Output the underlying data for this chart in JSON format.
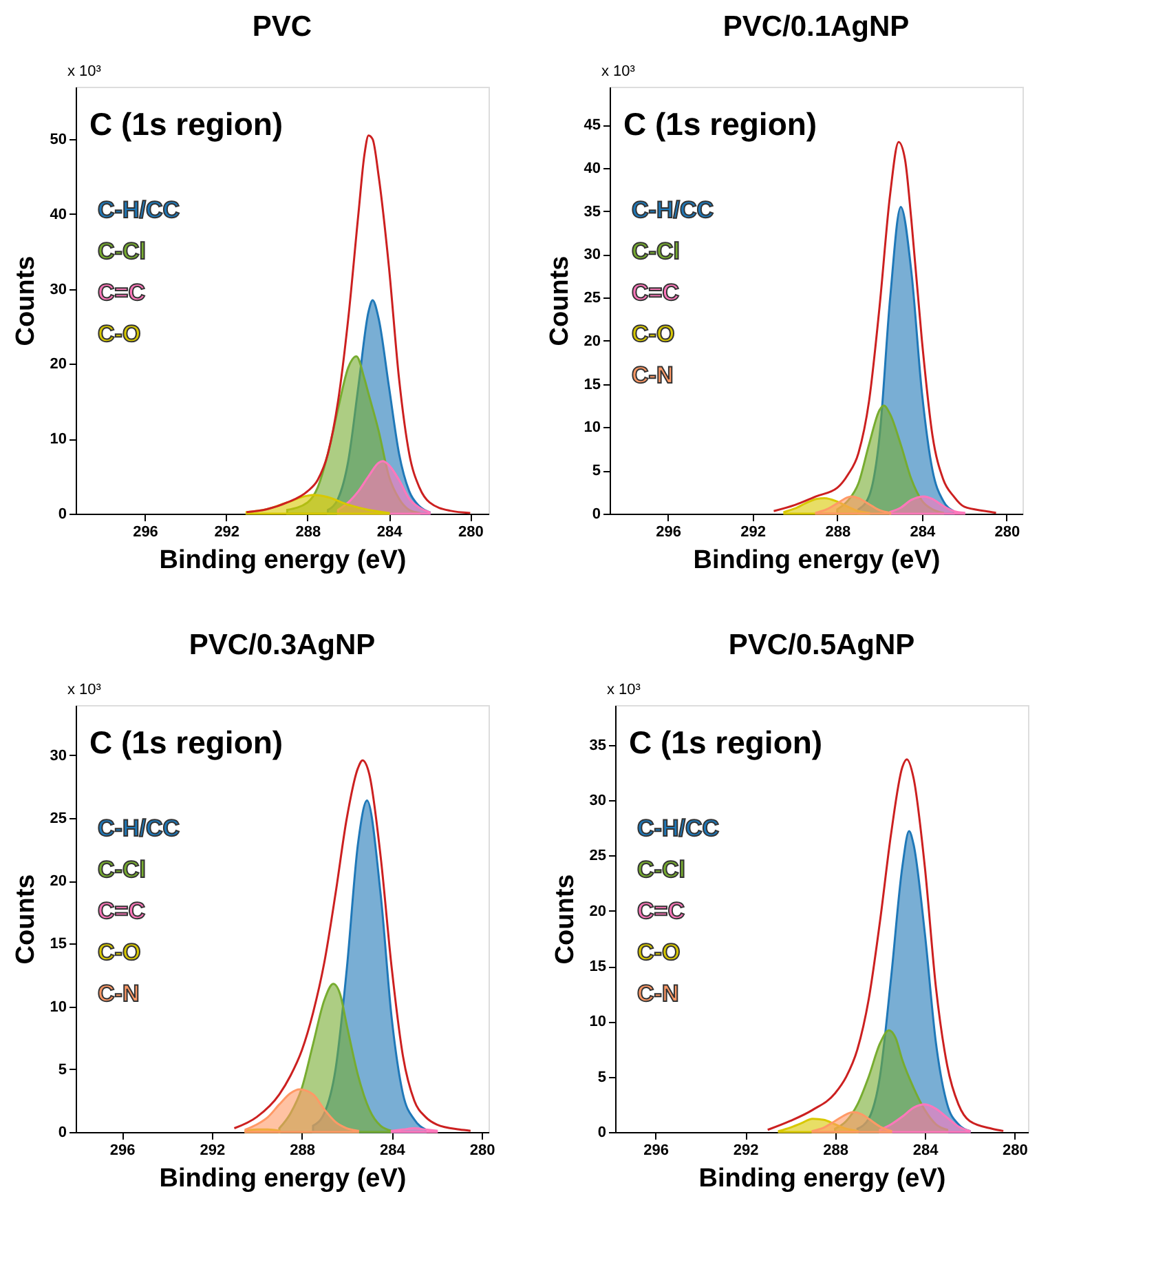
{
  "chart_data": [
    {
      "type": "area",
      "title": "PVC",
      "xlabel": "Binding energy (eV)",
      "ylabel": "Counts",
      "annotations": [
        "C (1s region)",
        "x 10³"
      ],
      "xlim": [
        299.4,
        279.1
      ],
      "xticks": [
        296,
        292,
        288,
        284,
        280
      ],
      "ylim": [
        0,
        57
      ],
      "yticks": [
        0,
        10,
        20,
        30,
        40,
        50
      ],
      "legend": "top left",
      "series": [
        {
          "name": "C-H/CC",
          "color": "#1f78b8",
          "x": [
            287,
            286.5,
            286,
            285.5,
            285,
            284.8,
            284.5,
            284,
            283.5,
            283,
            282.5,
            282
          ],
          "values": [
            0.5,
            2,
            7,
            17,
            27,
            28.5,
            26,
            17,
            8,
            3,
            1,
            0.2
          ]
        },
        {
          "name": "C-Cl",
          "color": "#77ac30",
          "x": [
            289,
            288,
            287.5,
            287,
            286.5,
            286,
            285.6,
            285.2,
            285,
            284.5,
            284,
            283.5,
            283,
            282.5
          ],
          "values": [
            0.5,
            1.5,
            3.5,
            8,
            14,
            19.5,
            21,
            18,
            16,
            11,
            5,
            2,
            0.5,
            0.1
          ]
        },
        {
          "name": "C=C",
          "color": "#ff77bb",
          "x": [
            286.5,
            286,
            285.5,
            285,
            284.5,
            284.3,
            284,
            283.5,
            283,
            282.5,
            282
          ],
          "values": [
            0.5,
            1.5,
            3,
            5,
            6.8,
            7,
            6.5,
            4.5,
            2,
            0.8,
            0.2
          ]
        },
        {
          "name": "C-O",
          "color": "#d8c800",
          "x": [
            291,
            290,
            289,
            288,
            287.7,
            287,
            286,
            285,
            284
          ],
          "values": [
            0.2,
            0.6,
            1.5,
            2.4,
            2.5,
            2.2,
            1.2,
            0.5,
            0.1
          ]
        },
        {
          "type": "line",
          "color": "#cc2020",
          "x": [
            291,
            290,
            289,
            288,
            287.5,
            287,
            286.5,
            286,
            285.5,
            285.2,
            285,
            284.8,
            284.5,
            284,
            283.5,
            283,
            282.5,
            282,
            281,
            280
          ],
          "values": [
            0.2,
            0.6,
            1.5,
            3,
            4.5,
            8,
            15,
            26,
            40,
            48,
            50.5,
            50,
            45,
            33,
            18,
            8,
            3.5,
            1.5,
            0.4,
            0.1
          ]
        }
      ]
    },
    {
      "type": "area",
      "title": "PVC/0.1AgNP",
      "xlabel": "Binding energy (eV)",
      "ylabel": "Counts",
      "annotations": [
        "C (1s region)",
        "x 10³"
      ],
      "xlim": [
        298.75,
        279.25
      ],
      "xticks": [
        296,
        292,
        288,
        284,
        280
      ],
      "ylim": [
        0,
        49.4
      ],
      "yticks": [
        0,
        5,
        10,
        15,
        20,
        25,
        30,
        35,
        40,
        45
      ],
      "legend": "top left",
      "series": [
        {
          "name": "C-H/CC",
          "color": "#1f78b8",
          "x": [
            287,
            286.5,
            286,
            285.5,
            285,
            284.5,
            284,
            283.5,
            283,
            282.5
          ],
          "values": [
            0.5,
            2,
            9,
            25,
            35.5,
            28,
            14,
            5,
            1.5,
            0.3
          ]
        },
        {
          "name": "C-Cl",
          "color": "#77ac30",
          "x": [
            288,
            287.5,
            287,
            286.5,
            286,
            285.8,
            285.5,
            285,
            284.5,
            284,
            283.5,
            283
          ],
          "values": [
            0.5,
            1.5,
            3.5,
            8,
            12,
            12.5,
            11.5,
            8,
            4,
            1.5,
            0.5,
            0.1
          ]
        },
        {
          "name": "C=C",
          "color": "#ff77bb",
          "x": [
            285.5,
            285,
            284.5,
            283.9,
            283.5,
            283,
            282.5,
            282
          ],
          "values": [
            0.2,
            0.7,
            1.6,
            2,
            1.7,
            0.9,
            0.3,
            0.1
          ]
        },
        {
          "name": "C-O",
          "color": "#d8c800",
          "x": [
            290.5,
            290,
            289.5,
            289,
            288.6,
            288,
            287.5,
            287,
            286.5
          ],
          "values": [
            0.2,
            0.6,
            1.2,
            1.7,
            1.8,
            1.4,
            0.8,
            0.3,
            0.1
          ]
        },
        {
          "name": "C-N",
          "color": "#ff9966",
          "x": [
            289,
            288.5,
            288,
            287.5,
            287.3,
            287,
            286.5,
            286,
            285.5
          ],
          "values": [
            0.1,
            0.5,
            1.2,
            1.9,
            2,
            1.8,
            1.1,
            0.4,
            0.1
          ]
        },
        {
          "type": "line",
          "color": "#cc2020",
          "x": [
            291,
            290,
            289,
            288,
            287.5,
            287,
            286.5,
            286,
            285.5,
            285.1,
            284.8,
            284.5,
            284,
            283.5,
            283,
            282.5,
            282,
            281,
            280.5
          ],
          "values": [
            0.3,
            1,
            2,
            3,
            4.5,
            7,
            13,
            24,
            37,
            43,
            41,
            34,
            20,
            9,
            4,
            2,
            0.8,
            0.3,
            0.1
          ]
        }
      ]
    },
    {
      "type": "area",
      "title": "PVC/0.3AgNP",
      "xlabel": "Binding energy (eV)",
      "ylabel": "Counts",
      "annotations": [
        "C (1s region)",
        "x 10³"
      ],
      "xlim": [
        298.05,
        279.7
      ],
      "xticks": [
        296,
        292,
        288,
        284,
        280
      ],
      "ylim": [
        0,
        34
      ],
      "yticks": [
        0,
        5,
        10,
        15,
        20,
        25,
        30
      ],
      "legend": "top left",
      "series": [
        {
          "name": "C-H/CC",
          "color": "#1f78b8",
          "x": [
            287.5,
            287,
            286.5,
            286,
            285.5,
            285.1,
            284.5,
            284,
            283.5,
            283,
            282.5
          ],
          "values": [
            0.5,
            1.5,
            5,
            13,
            23,
            26.4,
            19,
            9,
            3,
            1,
            0.2
          ]
        },
        {
          "name": "C-Cl",
          "color": "#77ac30",
          "x": [
            289,
            288.5,
            288,
            287.5,
            287,
            286.6,
            286.3,
            286,
            285.5,
            285,
            284.5,
            284
          ],
          "values": [
            0.3,
            1.5,
            3.5,
            7,
            10.5,
            11.8,
            11,
            8.5,
            4.5,
            1.8,
            0.5,
            0.1
          ]
        },
        {
          "name": "C=C",
          "color": "#ff77bb",
          "x": [
            284,
            283.5,
            283,
            282.5,
            282
          ],
          "values": [
            0.1,
            0.2,
            0.3,
            0.2,
            0.1
          ]
        },
        {
          "name": "C-O",
          "color": "#d8c800",
          "x": [
            290.5,
            290,
            289.5,
            289
          ],
          "values": [
            0.1,
            0.2,
            0.2,
            0.1
          ]
        },
        {
          "name": "C-N",
          "color": "#ff9966",
          "x": [
            290.5,
            290,
            289.5,
            289,
            288.5,
            288.1,
            287.5,
            287,
            286.5,
            286,
            285.5
          ],
          "values": [
            0.2,
            0.6,
            1.2,
            2.2,
            3.1,
            3.4,
            3,
            1.8,
            0.8,
            0.3,
            0.1
          ]
        },
        {
          "type": "line",
          "color": "#cc2020",
          "x": [
            291,
            290,
            289,
            288.5,
            288,
            287.5,
            287,
            286.5,
            286,
            285.5,
            285.3,
            285,
            284.5,
            284,
            283.5,
            283,
            282.5,
            282,
            281,
            280.5
          ],
          "values": [
            0.3,
            1.2,
            3,
            4.5,
            6.5,
            9.5,
            13.5,
            19,
            25,
            29,
            29.6,
            28.5,
            22,
            13,
            6,
            2.5,
            1.2,
            0.6,
            0.2,
            0.1
          ]
        }
      ]
    },
    {
      "type": "area",
      "title": "PVC/0.5AgNP",
      "xlabel": "Binding energy (eV)",
      "ylabel": "Counts",
      "annotations": [
        "C (1s region)",
        "x 10³"
      ],
      "xlim": [
        297.8,
        279.4
      ],
      "xticks": [
        296,
        292,
        288,
        284,
        280
      ],
      "ylim": [
        0,
        38.6
      ],
      "yticks": [
        0,
        5,
        10,
        15,
        20,
        25,
        30,
        35
      ],
      "legend": "top left",
      "series": [
        {
          "name": "C-H/CC",
          "color": "#1f78b8",
          "x": [
            287,
            286.5,
            286,
            285.5,
            285,
            284.7,
            284.5,
            284,
            283.5,
            283,
            282.5,
            282
          ],
          "values": [
            0.3,
            1.2,
            5,
            14,
            24,
            27.2,
            26,
            18,
            8,
            2.5,
            0.7,
            0.1
          ]
        },
        {
          "name": "C-Cl",
          "color": "#77ac30",
          "x": [
            288,
            287.5,
            287,
            286.5,
            286,
            285.6,
            285.3,
            285,
            284.5,
            284,
            283.5,
            283
          ],
          "values": [
            0.3,
            1,
            2.5,
            5,
            8,
            9.2,
            8.5,
            6.5,
            4,
            2,
            0.7,
            0.2
          ]
        },
        {
          "name": "C=C",
          "color": "#ff77bb",
          "x": [
            286,
            285.5,
            285,
            284.5,
            284,
            283.5,
            283,
            282.5,
            282
          ],
          "values": [
            0.2,
            0.7,
            1.4,
            2.2,
            2.5,
            2.1,
            1.3,
            0.5,
            0.1
          ]
        },
        {
          "name": "C-O",
          "color": "#d8c800",
          "x": [
            290.5,
            290,
            289.5,
            289,
            288.5,
            288,
            287.5,
            287
          ],
          "values": [
            0.1,
            0.4,
            0.8,
            1.2,
            1.1,
            0.7,
            0.3,
            0.1
          ]
        },
        {
          "name": "C-N",
          "color": "#ff9966",
          "x": [
            289,
            288.5,
            288,
            287.5,
            287.2,
            286.8,
            286.5,
            286,
            285.5
          ],
          "values": [
            0.1,
            0.4,
            1,
            1.6,
            1.8,
            1.6,
            1.2,
            0.5,
            0.1
          ]
        },
        {
          "type": "line",
          "color": "#cc2020",
          "x": [
            291,
            290,
            289,
            288,
            287.5,
            287,
            286.5,
            286,
            285.5,
            285,
            284.8,
            284.5,
            284,
            283.5,
            283,
            282.5,
            282,
            281,
            280.5
          ],
          "values": [
            0.2,
            1,
            2,
            3.5,
            5,
            7.5,
            12,
            19,
            27,
            33,
            33.7,
            32,
            24,
            13,
            6,
            2.5,
            1,
            0.3,
            0.1
          ]
        }
      ]
    }
  ]
}
